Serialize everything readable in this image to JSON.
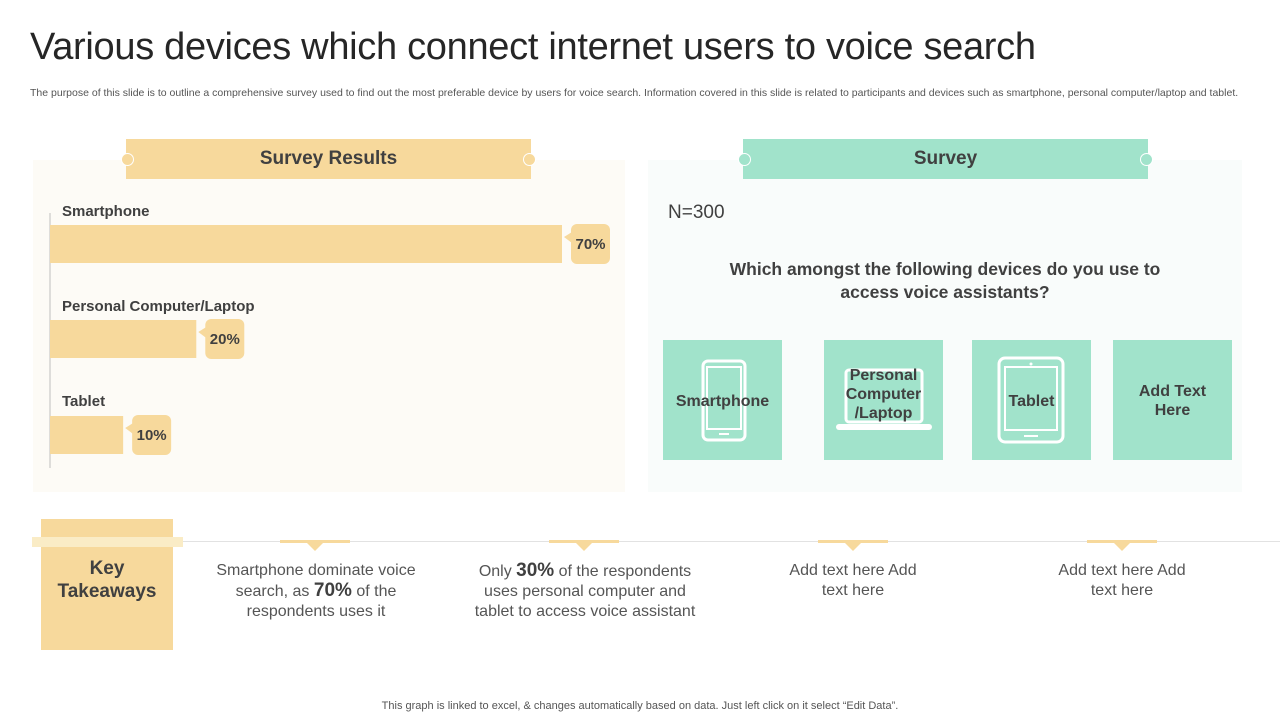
{
  "title": "Various devices which connect internet users to voice search",
  "description": "The purpose of this slide is to outline a comprehensive survey used to find out the most preferable device by users for voice search. Information covered in this slide is related to participants and devices such as smartphone, personal computer/laptop and tablet.",
  "left_panel": {
    "header": "Survey Results"
  },
  "right_panel": {
    "header": "Survey",
    "sample_size": "N=300",
    "question": "Which amongst the following devices do you use to access voice assistants?",
    "tiles": [
      {
        "label": "Smartphone",
        "icon": "smartphone-icon"
      },
      {
        "label": "Personal Computer /Laptop",
        "icon": "laptop-icon"
      },
      {
        "label": "Tablet",
        "icon": "tablet-icon"
      },
      {
        "label": "Add Text Here",
        "icon": ""
      }
    ]
  },
  "chart_data": {
    "type": "bar",
    "orientation": "horizontal",
    "categories": [
      "Smartphone",
      "Personal Computer/Laptop",
      "Tablet"
    ],
    "values": [
      70,
      20,
      10
    ],
    "value_labels": [
      "70%",
      "20%",
      "10%"
    ],
    "unit": "%",
    "xlim": [
      0,
      70
    ],
    "grid": false,
    "bar_color": "#f7d99c"
  },
  "key_takeaways": {
    "label": "Key Takeaways",
    "items": [
      {
        "pre": "Smartphone dominate voice search, as ",
        "highlight": "70%",
        "post": " of the respondents uses it"
      },
      {
        "pre": "Only ",
        "highlight": "30%",
        "post": " of the respondents uses personal computer and tablet to access voice assistant"
      },
      {
        "pre": "Add text here Add text here",
        "highlight": "",
        "post": ""
      },
      {
        "pre": "Add text here Add text here",
        "highlight": "",
        "post": ""
      }
    ]
  },
  "footer": "This graph is linked to excel, & changes automatically based on data. Just left click on it select “Edit Data”.",
  "colors": {
    "accent_yellow": "#f7d99c",
    "accent_mint": "#a1e3cb",
    "title": "#262626"
  }
}
